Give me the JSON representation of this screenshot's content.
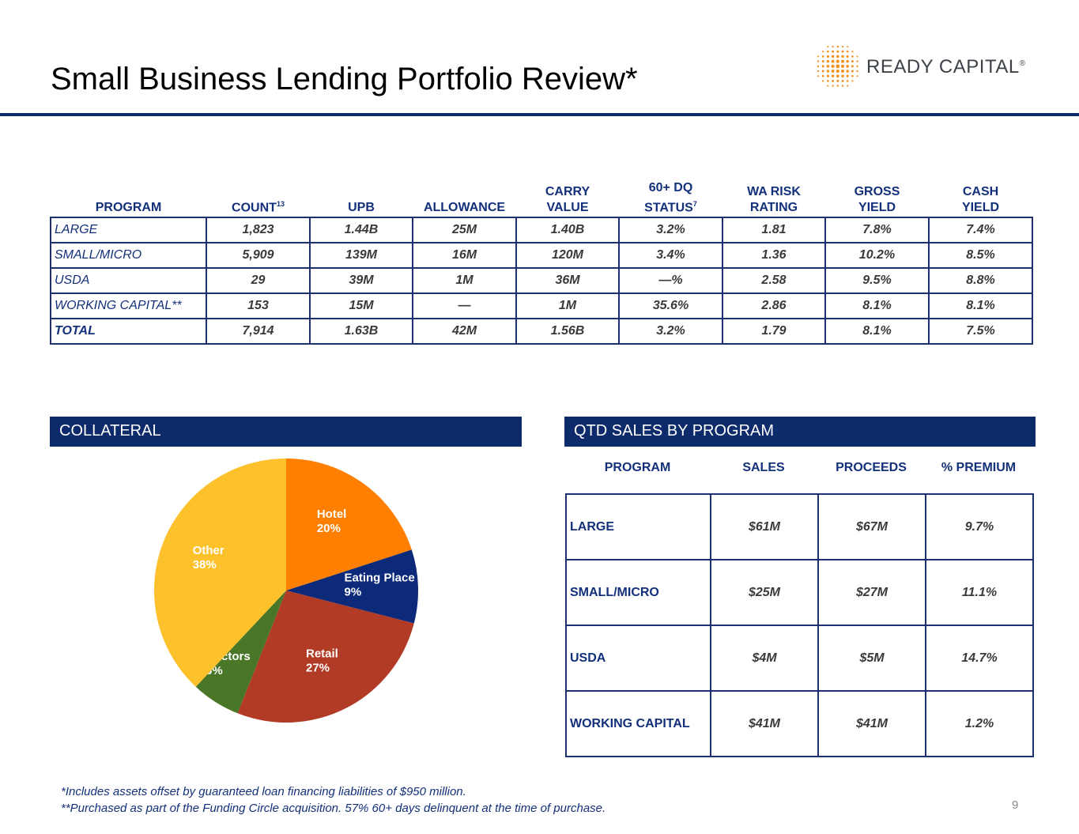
{
  "title": "Small Business Lending Portfolio Review*",
  "logo": {
    "name": "READY CAPITAL",
    "mark": "®",
    "brand_color": "#f0921f"
  },
  "portfolio_table": {
    "headers": [
      {
        "label": "PROGRAM",
        "sup": ""
      },
      {
        "label": "COUNT",
        "sup": "13"
      },
      {
        "label": "UPB",
        "sup": ""
      },
      {
        "label": "ALLOWANCE",
        "sup": ""
      },
      {
        "label": "CARRY\nVALUE",
        "sup": ""
      },
      {
        "label": "60+ DQ\nSTATUS",
        "sup": "7"
      },
      {
        "label": "WA RISK\nRATING",
        "sup": ""
      },
      {
        "label": "GROSS\nYIELD",
        "sup": ""
      },
      {
        "label": "CASH\nYIELD",
        "sup": ""
      }
    ],
    "rows": [
      [
        "LARGE",
        "1,823",
        "1.44B",
        "25M",
        "1.40B",
        "3.2%",
        "1.81",
        "7.8%",
        "7.4%"
      ],
      [
        "SMALL/MICRO",
        "5,909",
        "139M",
        "16M",
        "120M",
        "3.4%",
        "1.36",
        "10.2%",
        "8.5%"
      ],
      [
        "USDA",
        "29",
        "39M",
        "1M",
        "36M",
        "—%",
        "2.58",
        "9.5%",
        "8.8%"
      ],
      [
        "WORKING CAPITAL**",
        "153",
        "15M",
        "—",
        "1M",
        "35.6%",
        "2.86",
        "8.1%",
        "8.1%"
      ],
      [
        "TOTAL",
        "7,914",
        "1.63B",
        "42M",
        "1.56B",
        "3.2%",
        "1.79",
        "8.1%",
        "7.5%"
      ]
    ]
  },
  "collateral": {
    "header": "COLLATERAL",
    "chart_data": {
      "type": "pie",
      "slices": [
        {
          "label": "Hotel",
          "pct_label": "20%",
          "value": 20,
          "color": "#ff8000"
        },
        {
          "label": "Eating Place",
          "pct_label": "9%",
          "value": 9,
          "color": "#0d2a7a"
        },
        {
          "label": "Retail",
          "pct_label": "27%",
          "value": 27,
          "color": "#b13b25"
        },
        {
          "label": "Doctors",
          "pct_label": "6%",
          "value": 6,
          "color": "#4a7727"
        },
        {
          "label": "Other",
          "pct_label": "38%",
          "value": 38,
          "color": "#fdc12c"
        }
      ]
    }
  },
  "sales": {
    "header": "QTD SALES BY PROGRAM",
    "columns": [
      "PROGRAM",
      "SALES",
      "PROCEEDS",
      "% PREMIUM"
    ],
    "rows": [
      [
        "LARGE",
        "$61M",
        "$67M",
        "9.7%"
      ],
      [
        "SMALL/MICRO",
        "$25M",
        "$27M",
        "11.1%"
      ],
      [
        "USDA",
        "$4M",
        "$5M",
        "14.7%"
      ],
      [
        "WORKING CAPITAL",
        "$41M",
        "$41M",
        "1.2%"
      ]
    ]
  },
  "footnotes": [
    "*Includes assets offset by guaranteed loan financing liabilities of $950 million.",
    "**Purchased as part of the Funding Circle acquisition. 57% 60+ days delinquent at the time of purchase."
  ],
  "page_number": "9"
}
